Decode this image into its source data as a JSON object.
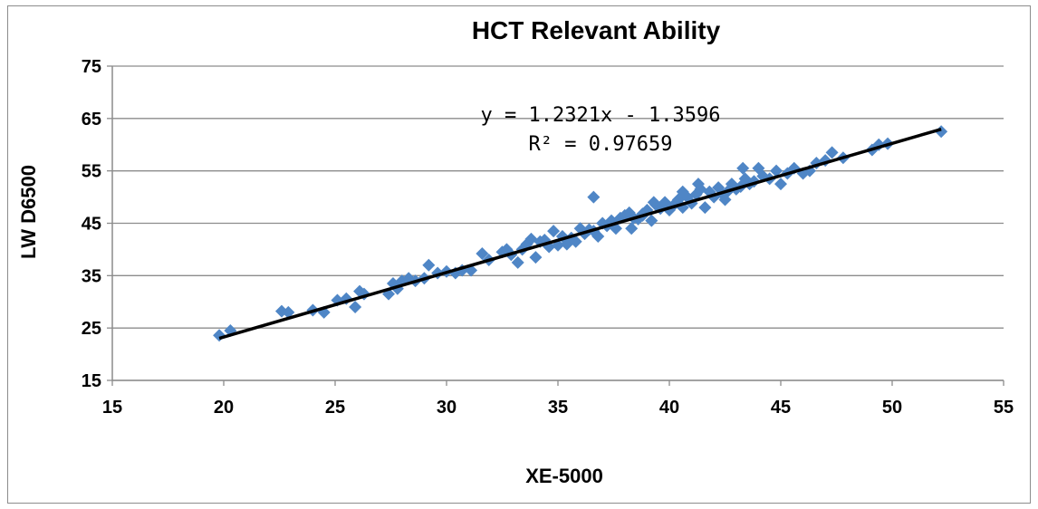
{
  "chart_data": {
    "type": "scatter",
    "title": "HCT Relevant Ability",
    "xlabel": "XE-5000",
    "ylabel": "LW D6500",
    "xlim": [
      15,
      55
    ],
    "ylim": [
      15,
      75
    ],
    "x_ticks": [
      15,
      20,
      25,
      30,
      35,
      40,
      45,
      50,
      55
    ],
    "y_ticks": [
      15,
      25,
      35,
      45,
      55,
      65,
      75
    ],
    "grid": true,
    "legend": "none",
    "marker_color": "#4f86c6",
    "trendline_color": "#000000",
    "trendline": {
      "slope": 1.2321,
      "intercept": -1.3596,
      "x_range": [
        19.8,
        52.2
      ],
      "equation": "y = 1.2321x - 1.3596",
      "r_squared": "R² = 0.97659"
    },
    "series": [
      {
        "x": [
          19.8,
          20.3,
          22.6,
          22.9,
          24.0,
          24.5,
          25.1,
          25.5,
          25.9,
          26.1,
          26.3,
          27.4,
          27.6,
          27.8,
          28.0,
          28.3,
          28.6,
          29.0,
          29.2,
          29.6,
          30.0,
          30.4,
          30.7,
          31.1,
          31.6,
          31.9,
          32.5,
          32.7,
          32.9,
          33.2,
          33.4,
          33.6,
          33.8,
          34.0,
          34.2,
          34.4,
          34.6,
          34.8,
          35.0,
          35.2,
          35.4,
          35.6,
          35.8,
          36.0,
          36.2,
          36.4,
          36.6,
          36.8,
          37.0,
          37.2,
          37.4,
          37.6,
          37.8,
          38.0,
          38.2,
          38.4,
          38.6,
          38.8,
          39.0,
          39.2,
          39.4,
          39.6,
          39.8,
          40.0,
          40.2,
          40.4,
          40.6,
          40.8,
          41.0,
          41.2,
          41.4,
          41.6,
          41.8,
          42.0,
          42.2,
          42.4,
          42.6,
          42.8,
          43.0,
          43.2,
          43.4,
          43.6,
          43.8,
          44.0,
          44.2,
          44.5,
          44.8,
          45.0,
          45.3,
          45.6,
          46.0,
          46.3,
          46.6,
          47.0,
          47.3,
          47.8,
          49.1,
          49.4,
          49.8,
          52.2,
          36.6,
          38.3,
          38.8,
          39.3,
          40.6,
          41.3,
          42.5,
          43.3
        ],
        "y": [
          23.6,
          24.5,
          28.2,
          28.0,
          28.4,
          28.0,
          30.3,
          30.6,
          29.0,
          32.0,
          31.5,
          31.5,
          33.5,
          32.5,
          34.0,
          34.5,
          34.0,
          34.5,
          37.0,
          35.5,
          35.8,
          35.5,
          36.0,
          36.0,
          39.2,
          38.0,
          39.5,
          40.0,
          39.0,
          37.5,
          40.0,
          41.0,
          42.0,
          38.5,
          41.5,
          41.8,
          40.5,
          43.5,
          40.8,
          42.5,
          41.0,
          42.2,
          41.5,
          44.0,
          43.0,
          43.8,
          43.5,
          42.5,
          45.0,
          44.5,
          45.5,
          44.0,
          46.0,
          46.5,
          47.0,
          46.0,
          45.8,
          46.8,
          47.5,
          45.5,
          48.5,
          47.8,
          49.0,
          47.5,
          48.5,
          49.5,
          48.0,
          50.0,
          48.8,
          50.5,
          51.5,
          48.0,
          51.0,
          50.0,
          51.8,
          50.5,
          51.0,
          52.5,
          51.5,
          52.0,
          53.5,
          52.5,
          53.0,
          55.5,
          54.0,
          53.5,
          55.0,
          52.5,
          54.5,
          55.5,
          54.5,
          55.0,
          56.5,
          57.0,
          58.5,
          57.5,
          59.0,
          60.0,
          60.2,
          62.5,
          50.0,
          44.0,
          46.5,
          49.0,
          51.0,
          52.5,
          49.5,
          55.5
        ]
      }
    ]
  }
}
